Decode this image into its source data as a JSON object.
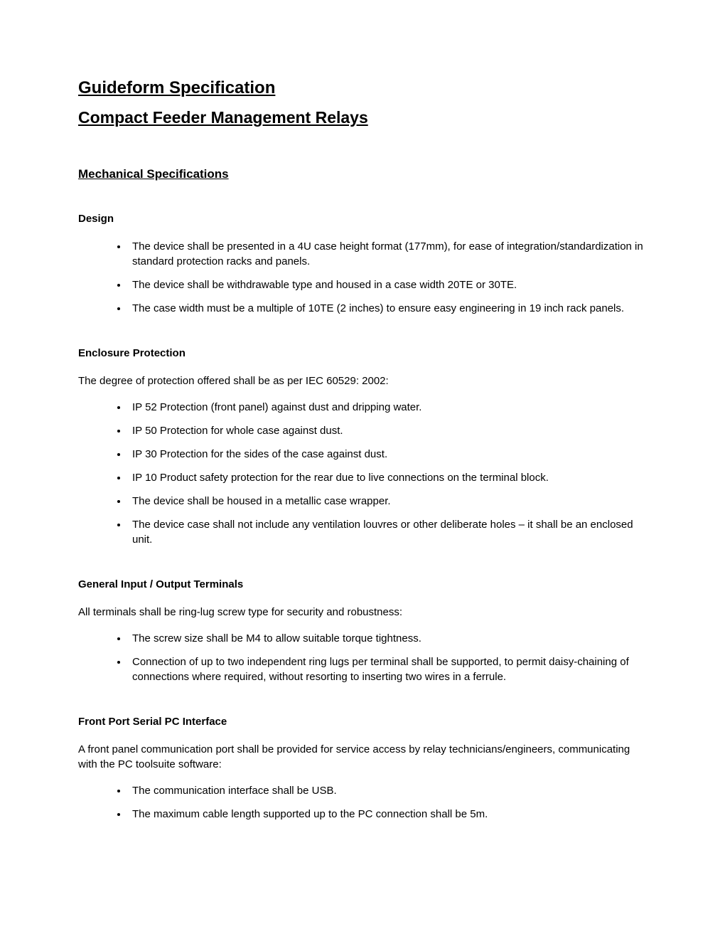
{
  "title1": "Guideform Specification",
  "title2": "Compact Feeder Management Relays",
  "mechSection": "Mechanical Specifications",
  "design": {
    "header": "Design",
    "items": [
      "The device shall be presented in a 4U case height format (177mm), for ease of integration/standardization in standard protection racks and panels.",
      "The device shall be withdrawable type and housed in a case width 20TE or 30TE.",
      "The case width must be a multiple of 10TE (2 inches) to ensure easy engineering in 19 inch rack panels."
    ]
  },
  "enclosure": {
    "header": "Enclosure Protection",
    "intro": "The degree of protection offered shall be as per IEC 60529: 2002:",
    "items": [
      "IP 52 Protection (front panel) against dust and dripping water.",
      "IP 50 Protection for whole case against dust.",
      "IP 30 Protection for the sides of the case against dust.",
      "IP 10 Product safety protection for the rear due to live connections on the terminal block.",
      "The device shall be housed in a metallic case wrapper.",
      "The device case shall not include any ventilation louvres or other deliberate holes – it shall be an enclosed unit."
    ]
  },
  "terminals": {
    "header": "General Input / Output Terminals",
    "intro": "All terminals shall be ring-lug screw type for security and robustness:",
    "items": [
      "The screw size shall be M4 to allow suitable torque tightness.",
      "Connection of up to two independent ring lugs per terminal shall be supported, to permit daisy-chaining of connections where required, without resorting to inserting two wires in a ferrule."
    ]
  },
  "frontport": {
    "header": "Front Port Serial PC Interface",
    "intro": "A front panel communication port shall be provided for service access by relay technicians/engineers, communicating with the PC toolsuite software:",
    "items": [
      "The communication interface shall be USB.",
      "The maximum cable length supported up to the PC connection shall be 5m."
    ]
  }
}
